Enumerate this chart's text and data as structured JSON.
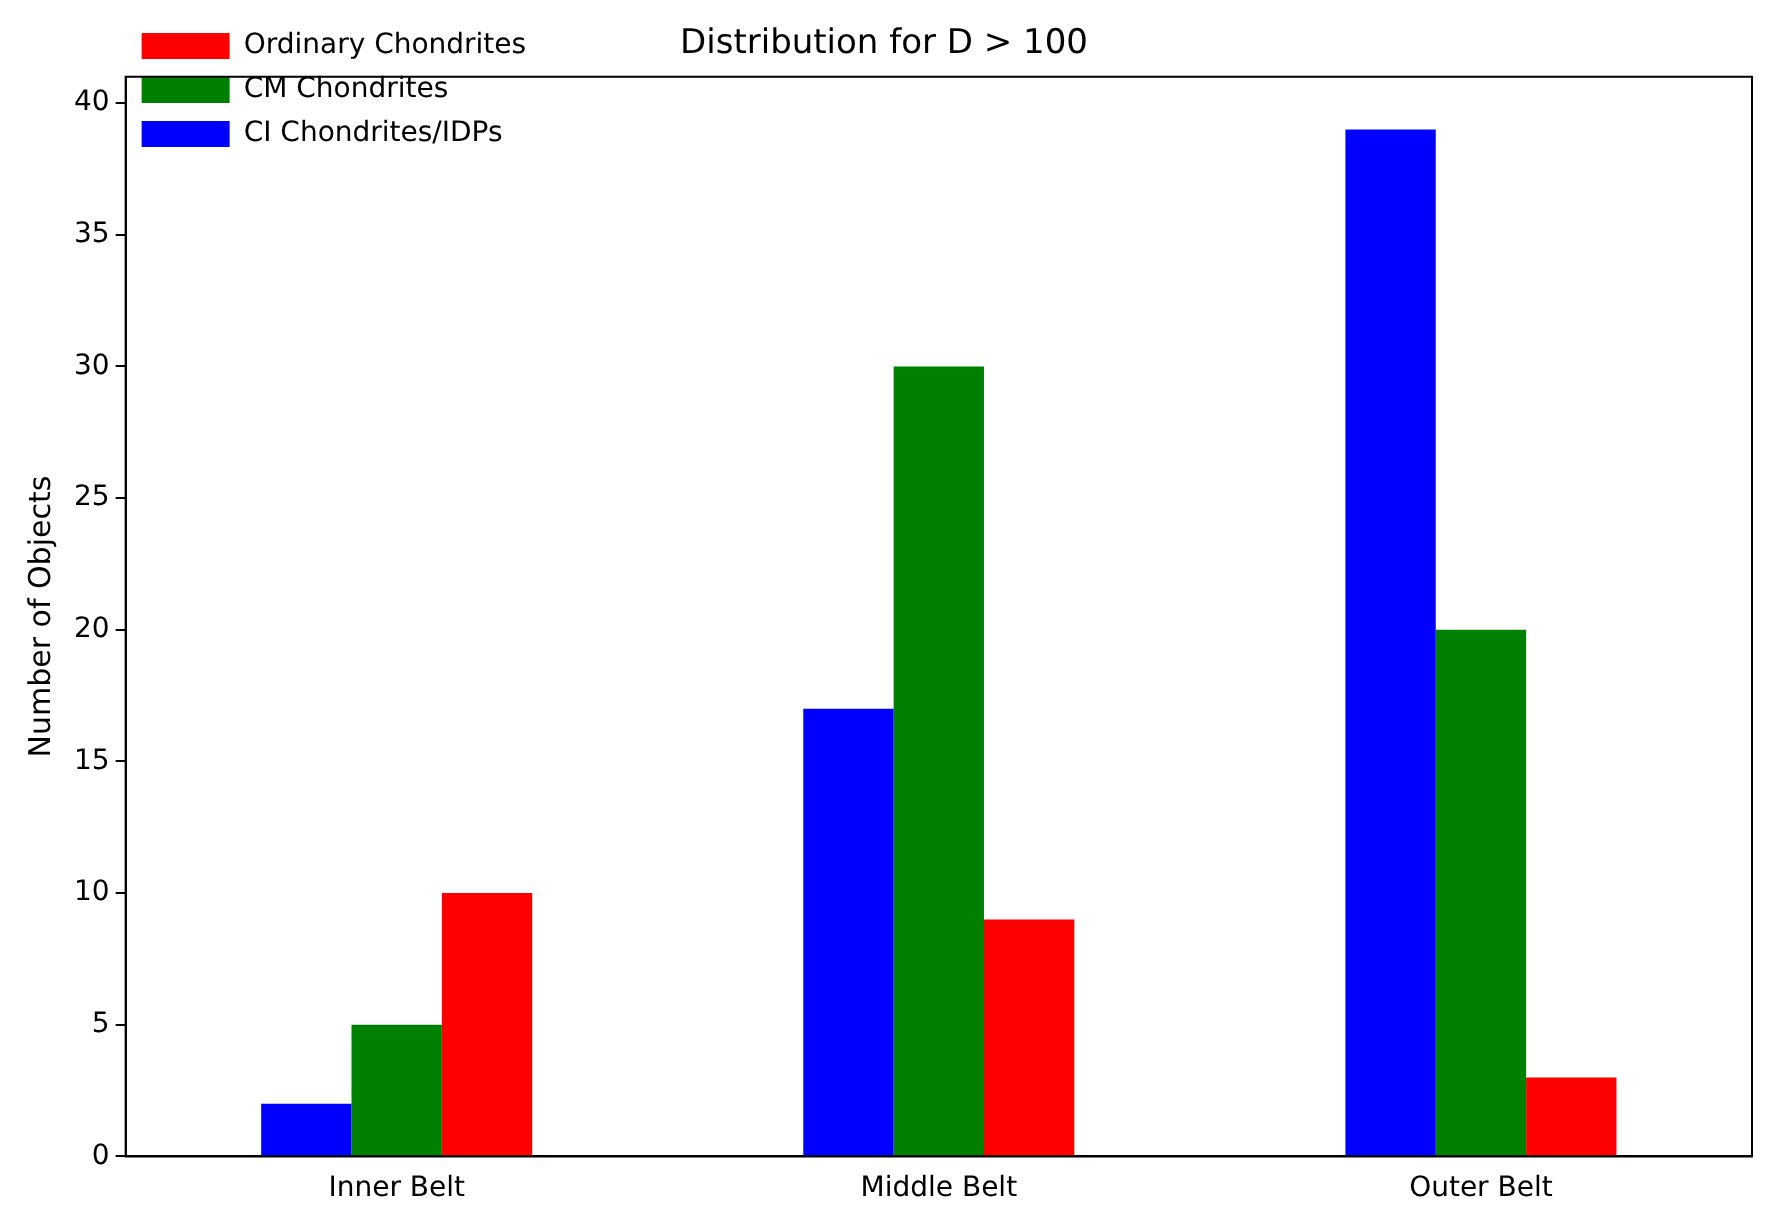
{
  "chart_data": {
    "type": "bar",
    "title": "Distribution for D > 100",
    "ylabel": "Number of Objects",
    "categories": [
      "Inner Belt",
      "Middle Belt",
      "Outer Belt"
    ],
    "series": [
      {
        "name": "CI Chondrites/IDPs",
        "color": "#0000ff",
        "values": [
          2,
          17,
          39
        ]
      },
      {
        "name": "CM Chondrites",
        "color": "#008000",
        "values": [
          5,
          30,
          20
        ]
      },
      {
        "name": "Ordinary Chondrites",
        "color": "#ff0000",
        "values": [
          10,
          9,
          3
        ]
      }
    ],
    "ylim": [
      0,
      41
    ],
    "yticks": [
      0,
      5,
      10,
      15,
      20,
      25,
      30,
      35,
      40
    ],
    "grid": false,
    "legend": "top left"
  }
}
